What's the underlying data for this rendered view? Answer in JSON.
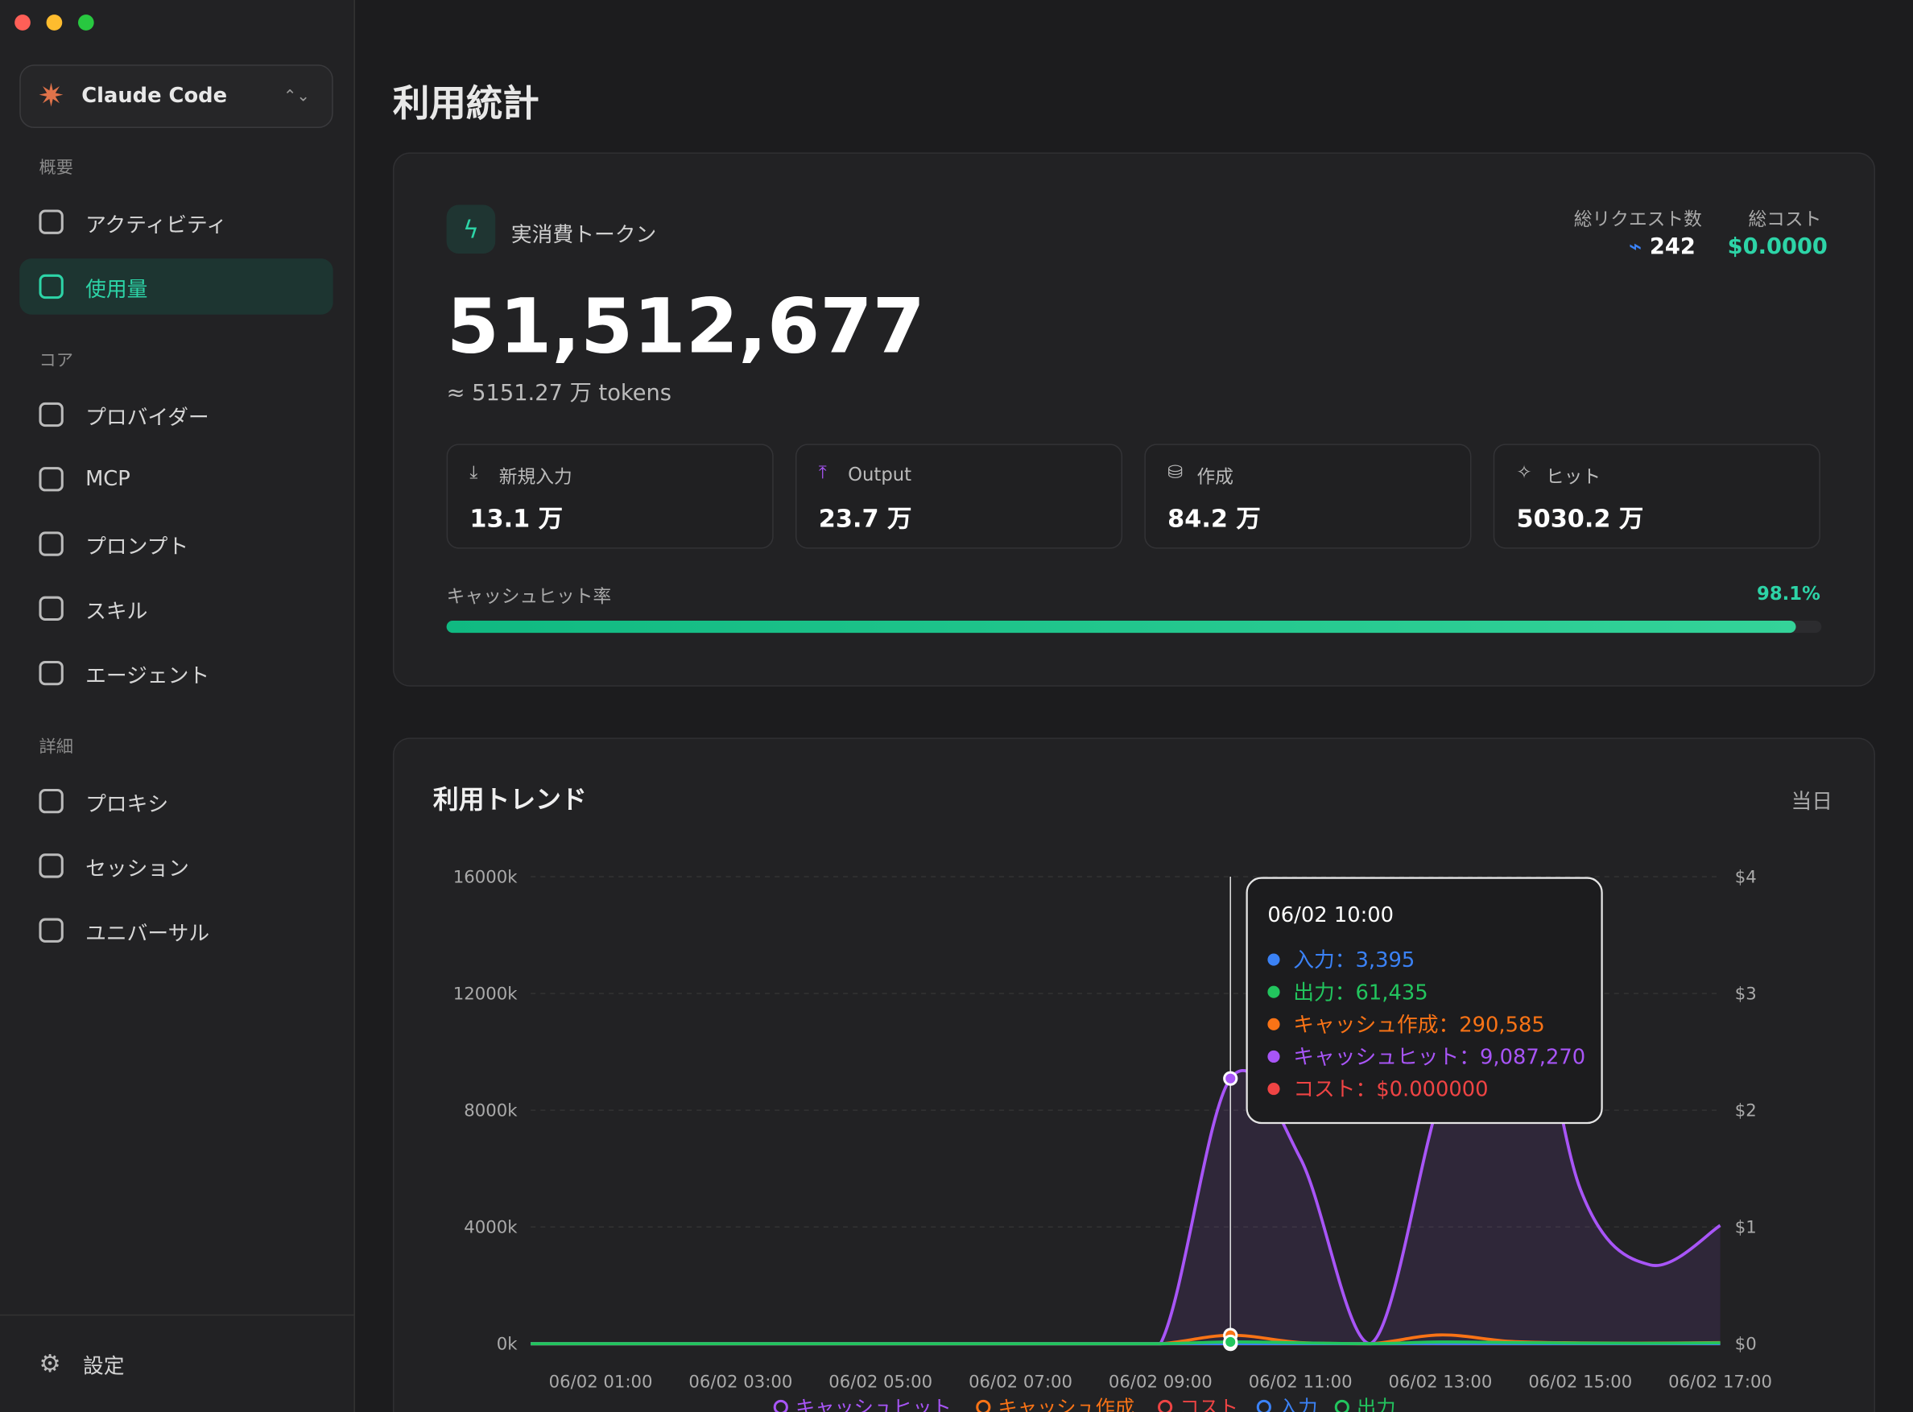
{
  "sidebar": {
    "app": "Claude Code",
    "sections": [
      {
        "title": "概要",
        "items": [
          "アクティビティ",
          "使用量"
        ]
      },
      {
        "title": "コア",
        "items": [
          "プロバイダー",
          "MCP",
          "プロンプト",
          "スキル",
          "エージェント"
        ]
      },
      {
        "title": "詳細",
        "items": [
          "プロキシ",
          "セッション",
          "ユニバーサル"
        ]
      }
    ],
    "settings": "設定"
  },
  "page_title": "利用統計",
  "summary": {
    "label": "実消費トークン",
    "total": "51,512,677",
    "approx": "≈ 5151.27 万 tokens",
    "requests_label": "総リクエスト数",
    "requests": "242",
    "cost_label": "総コスト",
    "cost": "$0.0000",
    "cards": [
      {
        "label": "新規入力",
        "value": "13.1 万"
      },
      {
        "label": "Output",
        "value": "23.7 万"
      },
      {
        "label": "作成",
        "value": "84.2 万"
      },
      {
        "label": "ヒット",
        "value": "5030.2 万"
      }
    ],
    "cache_label": "キャッシュヒット率",
    "cache_rate": 98.1,
    "cache_rate_label": "98.1%"
  },
  "chart_data": {
    "type": "line",
    "title": "利用トレンド",
    "range_label": "当日",
    "categories": [
      null,
      "06/02 01:00",
      null,
      "06/02 03:00",
      null,
      "06/02 05:00",
      null,
      "06/02 07:00",
      null,
      "06/02 09:00",
      null,
      "06/02 11:00",
      null,
      "06/02 13:00",
      null,
      "06/02 15:00",
      null,
      "06/02 17:00"
    ],
    "series": [
      {
        "name": "キャッシュヒット",
        "color": "#a855f7",
        "area": true,
        "values": [
          0,
          0,
          0,
          0,
          0,
          0,
          0,
          0,
          0,
          0,
          9087270,
          6350000,
          0,
          8500000,
          15100000,
          5300000,
          2700000,
          4050000
        ]
      },
      {
        "name": "キャッシュ作成",
        "color": "#f97316",
        "values": [
          0,
          0,
          0,
          0,
          0,
          0,
          0,
          0,
          0,
          0,
          290585,
          40000,
          0,
          300000,
          80000,
          30000,
          20000,
          40000
        ]
      },
      {
        "name": "コスト",
        "color": "#ef4444",
        "axis": "y2",
        "values": [
          0,
          0,
          0,
          0,
          0,
          0,
          0,
          0,
          0,
          0,
          0,
          0,
          0,
          0,
          0,
          0,
          0,
          0
        ]
      },
      {
        "name": "入力",
        "color": "#3b82f6",
        "values": [
          0,
          0,
          0,
          0,
          0,
          0,
          0,
          0,
          0,
          0,
          3395,
          2000,
          0,
          5000,
          3000,
          2000,
          2000,
          3000
        ]
      },
      {
        "name": "出力",
        "color": "#22c55e",
        "values": [
          0,
          0,
          0,
          0,
          0,
          0,
          0,
          0,
          0,
          0,
          61435,
          30000,
          0,
          60000,
          40000,
          20000,
          15000,
          30000
        ]
      }
    ],
    "ylim": [
      0,
      16000000
    ],
    "yticks": [
      {
        "value": 0,
        "label": "0k"
      },
      {
        "value": 4000000,
        "label": "4000k"
      },
      {
        "value": 8000000,
        "label": "8000k"
      },
      {
        "value": 12000000,
        "label": "12000k"
      },
      {
        "value": 16000000,
        "label": "16000k"
      }
    ],
    "y2lim": [
      0,
      4
    ],
    "y2ticks": [
      {
        "value": 0,
        "label": "$0"
      },
      {
        "value": 1,
        "label": "$1"
      },
      {
        "value": 2,
        "label": "$2"
      },
      {
        "value": 3,
        "label": "$3"
      },
      {
        "value": 4,
        "label": "$4"
      }
    ],
    "grid": true
  },
  "tooltip": {
    "title": "06/02 10:00",
    "rows": [
      {
        "label": "入力：",
        "value": "3,395",
        "color": "#3b82f6"
      },
      {
        "label": "出力：",
        "value": "61,435",
        "color": "#22c55e"
      },
      {
        "label": "キャッシュ作成：",
        "value": "290,585",
        "color": "#f97316"
      },
      {
        "label": "キャッシュヒット：",
        "value": "9,087,270",
        "color": "#a855f7"
      },
      {
        "label": "コスト：",
        "value": "$0.000000",
        "color": "#ef4444"
      }
    ]
  }
}
